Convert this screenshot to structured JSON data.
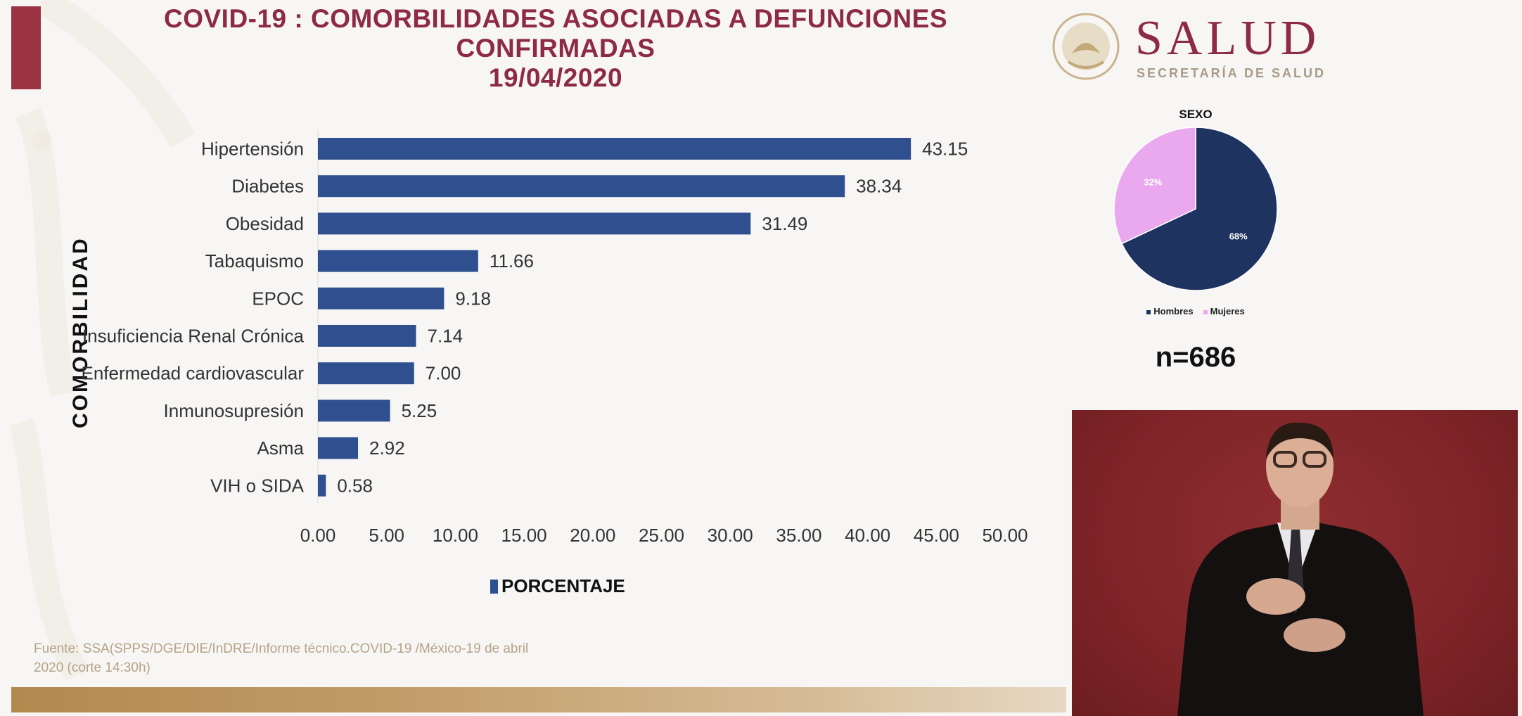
{
  "header": {
    "title_line1": "COVID-19 : COMORBILIDADES ASOCIADAS A DEFUNCIONES",
    "title_line2": "CONFIRMADAS",
    "title_line3": "19/04/2020"
  },
  "logo": {
    "word": "SALUD",
    "subtitle": "SECRETARÍA DE SALUD",
    "seal_icon": "mexico-coat-of-arms-seal"
  },
  "colors": {
    "title": "#8d2a45",
    "bar": "#2f4f8f",
    "hombres": "#1f3361",
    "mujeres": "#eaa8ee",
    "gold": "#c19b66",
    "video_bg": "#7f2428"
  },
  "chart_data": [
    {
      "type": "bar",
      "orientation": "horizontal",
      "title": "COVID-19 : COMORBILIDADES ASOCIADAS A DEFUNCIONES CONFIRMADAS 19/04/2020",
      "ylabel": "COMORBILIDAD",
      "xlabel": "",
      "categories": [
        "Hipertensión",
        "Diabetes",
        "Obesidad",
        "Tabaquismo",
        "EPOC",
        "Insuficiencia Renal Crónica",
        "Enfermedad cardiovascular",
        "Inmunosupresión",
        "Asma",
        "VIH o SIDA"
      ],
      "series": [
        {
          "name": "PORCENTAJE",
          "values": [
            43.15,
            38.34,
            31.49,
            11.66,
            9.18,
            7.14,
            7.0,
            5.25,
            2.92,
            0.58
          ]
        }
      ],
      "value_labels": [
        "43.15",
        "38.34",
        "31.49",
        "11.66",
        "9.18",
        "7.14",
        "7.00",
        "5.25",
        "2.92",
        "0.58"
      ],
      "xlim": [
        0,
        50
      ],
      "xticks": [
        "0.00",
        "5.00",
        "10.00",
        "15.00",
        "20.00",
        "25.00",
        "30.00",
        "35.00",
        "40.00",
        "45.00",
        "50.00"
      ],
      "grid": false,
      "legend": {
        "entries": [
          "PORCENTAJE"
        ],
        "placement": "bottom"
      }
    },
    {
      "type": "pie",
      "title": "SEXO",
      "categories": [
        "Hombres",
        "Mujeres"
      ],
      "values": [
        68,
        32
      ],
      "value_labels": [
        "68%",
        "32%"
      ],
      "legend": {
        "entries": [
          "Hombres",
          "Mujeres"
        ],
        "placement": "bottom"
      },
      "annotation": "n=686"
    }
  ],
  "footer": {
    "source_line1": "Fuente: SSA(SPPS/DGE/DIE/InDRE/Informe técnico.COVID-19 /México-19 de abril",
    "source_line2": "2020 (corte 14:30h)"
  },
  "video": {
    "description": "sign-language-interpreter"
  }
}
